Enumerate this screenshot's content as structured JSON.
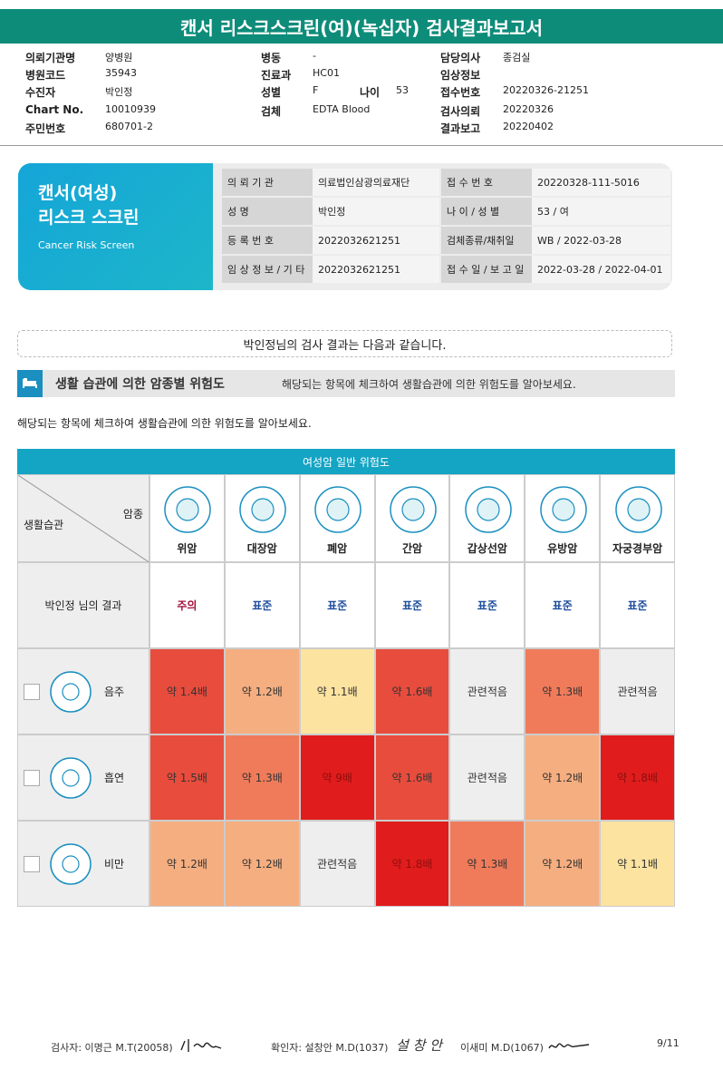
{
  "header": {
    "title": "캔서 리스크스크린(여)(녹십자) 검사결과보고서"
  },
  "info": [
    [
      {
        "label": "의뢰기관명",
        "value": "양병원"
      },
      {
        "label": "병원코드",
        "value": "35943"
      },
      {
        "label": "수진자",
        "value": "박인정"
      },
      {
        "label": "Chart No.",
        "value": "10010939"
      },
      {
        "label": "주민번호",
        "value": "680701-2"
      }
    ],
    [
      {
        "label": "병동",
        "value": "-"
      },
      {
        "label": "진료과",
        "value": "HC01"
      },
      {
        "label": "성별",
        "value": "F",
        "label2": "나이",
        "value2": "53"
      },
      {
        "label": "검체",
        "value": "EDTA Blood"
      }
    ],
    [
      {
        "label": "담당의사",
        "value": "종검실"
      },
      {
        "label": "임상정보"
      },
      {
        "label": "접수번호",
        "value": "20220326-21251"
      },
      {
        "label": "검사의뢰",
        "value": "20220326"
      },
      {
        "label": "결과보고",
        "value": "20220402"
      }
    ]
  ],
  "banner": {
    "title1": "캔서(여성)",
    "title2": "리스크 스크린",
    "subtitle": "Cancer Risk Screen",
    "rows": [
      [
        "의 뢰 기 관",
        "의료법인삼광의료재단",
        "접 수 번 호",
        "20220328-111-5016"
      ],
      [
        "성 명",
        "박인정",
        "나 이 / 성 별",
        "53 / 여"
      ],
      [
        "등 록 번 호",
        "2022032621251",
        "검체종류/채취일",
        "WB / 2022-03-28"
      ],
      [
        "임 상 정 보 / 기 타",
        "2022032621251",
        "접 수 일 / 보 고 일",
        "2022-03-28 / 2022-04-01"
      ]
    ]
  },
  "notice": "박인정님의 검사 결과는 다음과 같습니다.",
  "section": {
    "title": "생활 습관에 의한 암종별 위험도",
    "hint": "해당되는 항목에 체크하여 생활습관에 의한 위험도를 알아보세요."
  },
  "instruction": "해당되는 항목에 체크하여 생활습관에 의한 위험도를 알아보세요.",
  "risk_table": {
    "title": "여성암 일반 위험도",
    "corner_top": "암종",
    "corner_bottom": "생활습관",
    "cancers": [
      "위암",
      "대장암",
      "폐암",
      "간암",
      "갑상선암",
      "유방암",
      "자궁경부암"
    ],
    "result_label": "박인정 님의 결과",
    "results": [
      {
        "text": "주의",
        "color": "#a3123c"
      },
      {
        "text": "표준",
        "color": "#1f4e9c"
      },
      {
        "text": "표준",
        "color": "#1f4e9c"
      },
      {
        "text": "표준",
        "color": "#1f4e9c"
      },
      {
        "text": "표준",
        "color": "#1f4e9c"
      },
      {
        "text": "표준",
        "color": "#1f4e9c"
      },
      {
        "text": "표준",
        "color": "#1f4e9c"
      }
    ],
    "rows": [
      {
        "label": "음주",
        "cells": [
          {
            "text": "약 1.4배",
            "color": "#e84c3d"
          },
          {
            "text": "약 1.2배",
            "color": "#f5ae80"
          },
          {
            "text": "약 1.1배",
            "color": "#fde3a0"
          },
          {
            "text": "약 1.6배",
            "color": "#e84c3d"
          },
          {
            "text": "관련적음",
            "color": "#eeeeee"
          },
          {
            "text": "약 1.3배",
            "color": "#f07b5a"
          },
          {
            "text": "관련적음",
            "color": "#eeeeee"
          }
        ]
      },
      {
        "label": "흡연",
        "cells": [
          {
            "text": "약 1.5배",
            "color": "#e84c3d"
          },
          {
            "text": "약 1.3배",
            "color": "#f07b5a"
          },
          {
            "text": "약 9배",
            "color": "#e01c1c"
          },
          {
            "text": "약 1.6배",
            "color": "#e84c3d"
          },
          {
            "text": "관련적음",
            "color": "#eeeeee"
          },
          {
            "text": "약 1.2배",
            "color": "#f5ae80"
          },
          {
            "text": "약 1.8배",
            "color": "#e01c1c"
          }
        ]
      },
      {
        "label": "비만",
        "cells": [
          {
            "text": "약 1.2배",
            "color": "#f5ae80"
          },
          {
            "text": "약 1.2배",
            "color": "#f5ae80"
          },
          {
            "text": "관련적음",
            "color": "#eeeeee"
          },
          {
            "text": "약 1.8배",
            "color": "#e01c1c"
          },
          {
            "text": "약 1.3배",
            "color": "#f07b5a"
          },
          {
            "text": "약 1.2배",
            "color": "#f5ae80"
          },
          {
            "text": "약 1.1배",
            "color": "#fde3a0"
          }
        ]
      }
    ]
  },
  "footer": {
    "examiner": "검사자: 이명근 M.T(20058)",
    "confirmer": "확인자: 설창안 M.D(1037)",
    "signature": "설 창 안",
    "doctor2": "이새미 M.D(1067)",
    "page": "9/11"
  }
}
